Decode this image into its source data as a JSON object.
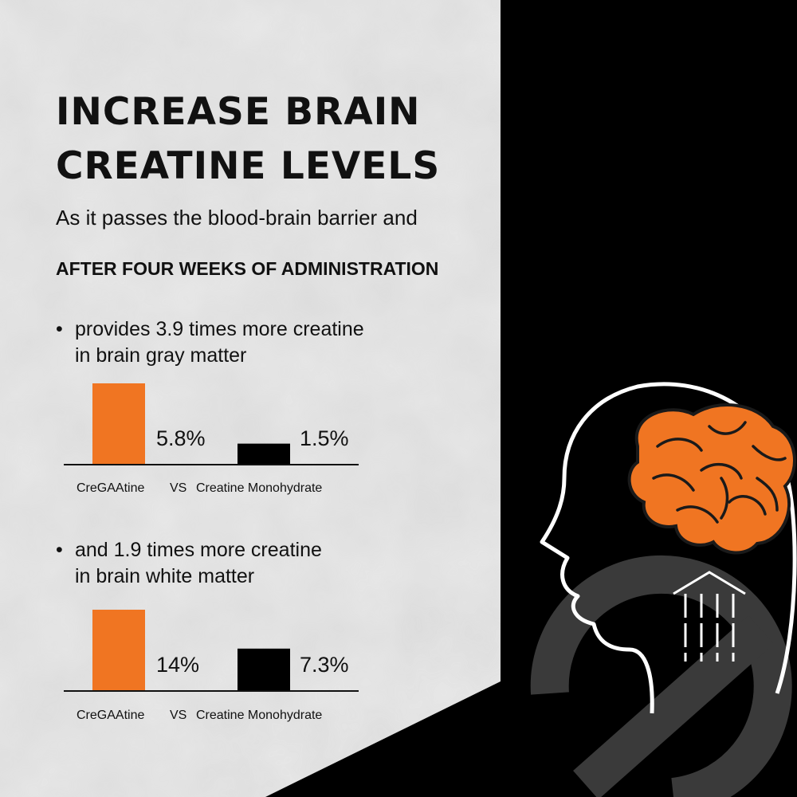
{
  "colors": {
    "accent": "#f07522",
    "dark": "#000000",
    "panel": "#e8e8e8"
  },
  "heading": {
    "line1": "INCREASE BRAIN",
    "line2": "CREATINE LEVELS"
  },
  "intro": "As it passes the blood-brain barrier and",
  "subheading": "AFTER FOUR WEEKS OF ADMINISTRATION",
  "bullets": [
    {
      "line1": "provides 3.9 times more creatine",
      "line2": "in brain gray matter"
    },
    {
      "line1": "and 1.9 times more creatine",
      "line2": "in brain white matter"
    }
  ],
  "bullet_symbol": "•",
  "caption": {
    "left": "CreGAAtine",
    "vs": "VS",
    "right": "Creatine Monohydrate"
  },
  "chart_data": [
    {
      "type": "bar",
      "categories": [
        "CreGAAtine",
        "Creatine Monohydrate"
      ],
      "values": [
        5.8,
        1.5
      ],
      "labels": [
        "5.8%",
        "1.5%"
      ],
      "unit": "%"
    },
    {
      "type": "bar",
      "categories": [
        "CreGAAtine",
        "Creatine Monohydrate"
      ],
      "values": [
        14,
        7.3
      ],
      "labels": [
        "14%",
        "7.3%"
      ],
      "unit": "%"
    }
  ],
  "icons": [
    "head-silhouette-icon",
    "brain-icon",
    "upward-arrow-icon",
    "brand-logo-mark"
  ]
}
